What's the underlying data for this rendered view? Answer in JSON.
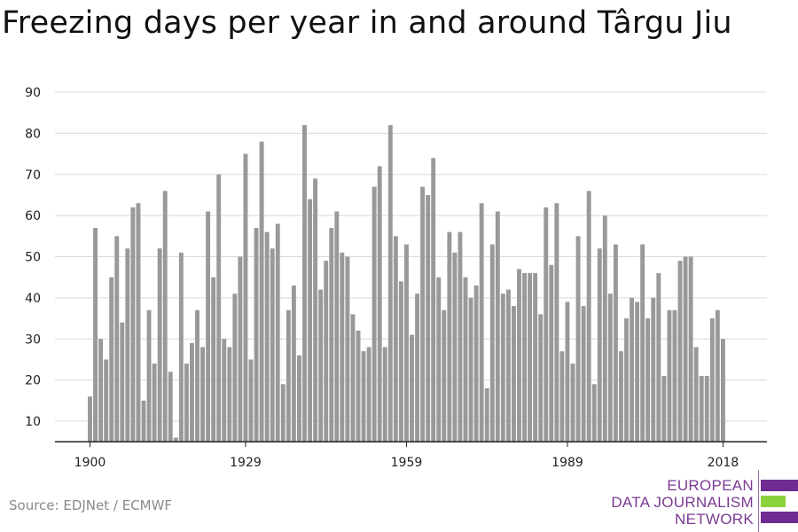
{
  "page": {
    "title": "Freezing days per year in and around Târgu Jiu",
    "source": "Source: EDJNet / ECMWF"
  },
  "logo": {
    "line1": "EUROPEAN",
    "line2": "DATA JOURNALISM",
    "line3": "NETWORK",
    "purple": "#6f2c91",
    "green": "#8cd23c"
  },
  "chart_data": {
    "type": "bar",
    "title": "Freezing days per year in and around Târgu Jiu",
    "xlabel": "",
    "ylabel": "",
    "x_start_year": 1900,
    "x_end_year": 2018,
    "xticks": [
      1900,
      1929,
      1959,
      1989,
      2018
    ],
    "yticks": [
      10,
      20,
      30,
      40,
      50,
      60,
      70,
      80,
      90
    ],
    "ylim": [
      5,
      93
    ],
    "grid": true,
    "legend": "none",
    "bar_color": "#999999",
    "values": [
      16,
      57,
      30,
      25,
      45,
      55,
      34,
      52,
      62,
      63,
      15,
      37,
      24,
      52,
      66,
      22,
      6,
      51,
      24,
      29,
      37,
      28,
      61,
      45,
      70,
      30,
      28,
      41,
      50,
      75,
      25,
      57,
      78,
      56,
      52,
      58,
      19,
      37,
      43,
      26,
      82,
      64,
      69,
      42,
      49,
      57,
      61,
      51,
      50,
      36,
      32,
      27,
      28,
      67,
      72,
      28,
      82,
      55,
      44,
      53,
      31,
      41,
      67,
      65,
      74,
      45,
      37,
      56,
      51,
      56,
      45,
      40,
      43,
      63,
      18,
      53,
      61,
      41,
      42,
      38,
      47,
      46,
      46,
      46,
      36,
      62,
      48,
      63,
      27,
      39,
      24,
      55,
      38,
      66,
      19,
      52,
      60,
      41,
      53,
      27,
      35,
      40,
      39,
      53,
      35,
      40,
      46,
      21,
      37,
      37,
      49,
      50,
      50,
      28,
      21,
      21,
      35,
      37,
      30
    ]
  }
}
